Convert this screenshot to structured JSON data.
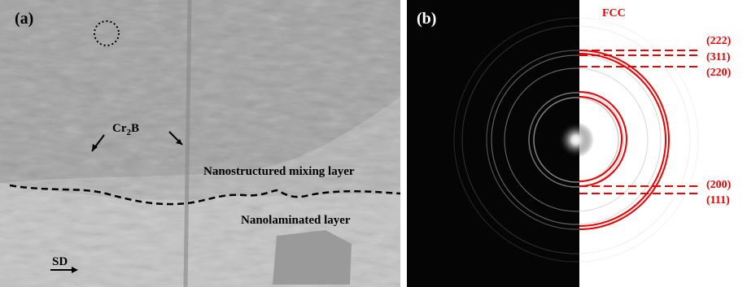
{
  "panel_a": {
    "label": "(a)",
    "phase": {
      "base": "Cr",
      "subscript": "2",
      "rest": "B"
    },
    "upper_layer": "Nanostructured mixing layer",
    "lower_layer": "Nanolaminated layer",
    "direction": "SD"
  },
  "panel_b": {
    "label": "(b)",
    "structure": "FCC",
    "planes": [
      "(222)",
      "(311)",
      "(220)",
      "(200)",
      "(111)"
    ]
  }
}
